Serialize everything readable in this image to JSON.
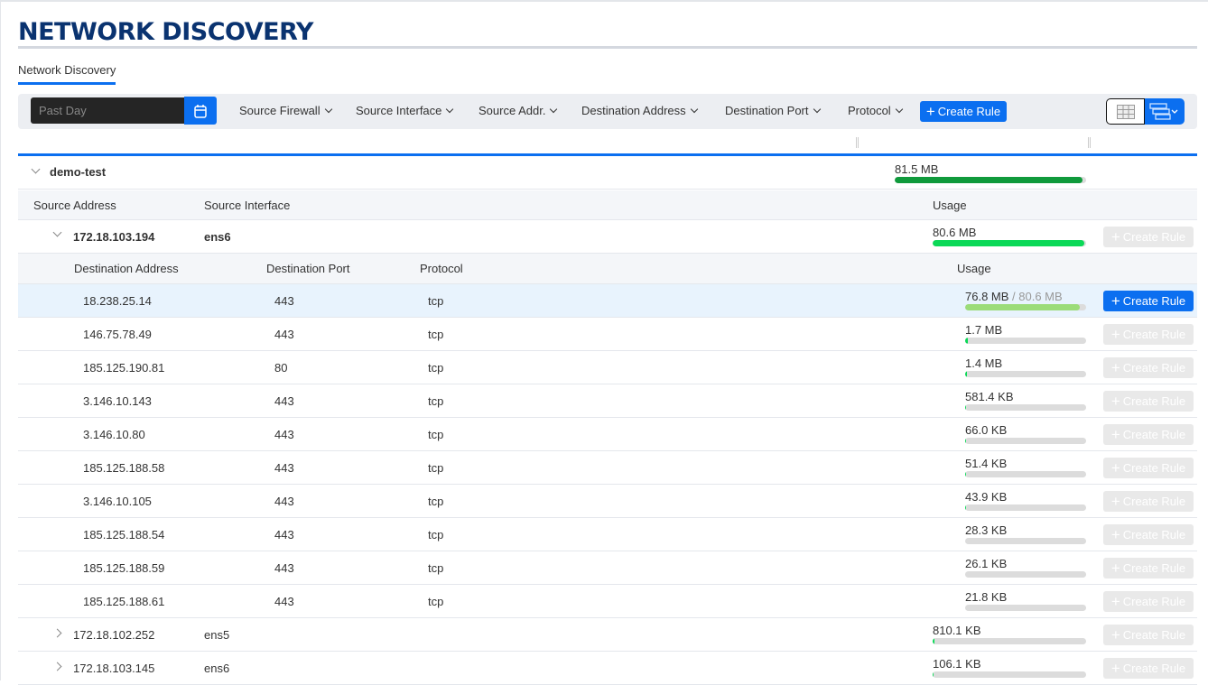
{
  "page": {
    "title": "NETWORK DISCOVERY",
    "tab": "Network Discovery"
  },
  "toolbar": {
    "date_value": "Past Day",
    "filters": [
      "Source Firewall",
      "Source Interface",
      "Source Addr.",
      "Destination Address",
      "Destination Port",
      "Protocol"
    ],
    "create_rule": "Create Rule"
  },
  "colors": {
    "accent": "#0b6ff0",
    "title": "#0a3370",
    "bar_group": "#109a3c",
    "bar_source": "#0bd957",
    "bar_dest": "#9bdc79"
  },
  "group": {
    "name": "demo-test",
    "usage": "81.5 MB",
    "fraction": 0.98
  },
  "source_headers": {
    "address": "Source Address",
    "interface": "Source Interface",
    "usage": "Usage"
  },
  "dest_headers": {
    "address": "Destination Address",
    "port": "Destination Port",
    "protocol": "Protocol",
    "usage": "Usage"
  },
  "create_rule_label": "Create Rule",
  "sources": [
    {
      "address": "172.18.103.194",
      "interface": "ens6",
      "usage": "80.6 MB",
      "fraction": 0.99,
      "expanded": true,
      "destinations": [
        {
          "address": "18.238.25.14",
          "port": "443",
          "protocol": "tcp",
          "usage": "76.8 MB",
          "total": "/ 80.6 MB",
          "fraction": 0.95,
          "selected": true
        },
        {
          "address": "146.75.78.49",
          "port": "443",
          "protocol": "tcp",
          "usage": "1.7 MB",
          "fraction": 0.021
        },
        {
          "address": "185.125.190.81",
          "port": "80",
          "protocol": "tcp",
          "usage": "1.4 MB",
          "fraction": 0.017
        },
        {
          "address": "3.146.10.143",
          "port": "443",
          "protocol": "tcp",
          "usage": "581.4 KB",
          "fraction": 0.007
        },
        {
          "address": "3.146.10.80",
          "port": "443",
          "protocol": "tcp",
          "usage": "66.0 KB",
          "fraction": 0.001
        },
        {
          "address": "185.125.188.58",
          "port": "443",
          "protocol": "tcp",
          "usage": "51.4 KB",
          "fraction": 0.001
        },
        {
          "address": "3.146.10.105",
          "port": "443",
          "protocol": "tcp",
          "usage": "43.9 KB",
          "fraction": 0.001
        },
        {
          "address": "185.125.188.54",
          "port": "443",
          "protocol": "tcp",
          "usage": "28.3 KB",
          "fraction": 0.0
        },
        {
          "address": "185.125.188.59",
          "port": "443",
          "protocol": "tcp",
          "usage": "26.1 KB",
          "fraction": 0.0
        },
        {
          "address": "185.125.188.61",
          "port": "443",
          "protocol": "tcp",
          "usage": "21.8 KB",
          "fraction": 0.0
        }
      ]
    },
    {
      "address": "172.18.102.252",
      "interface": "ens5",
      "usage": "810.1 KB",
      "fraction": 0.01,
      "expanded": false
    },
    {
      "address": "172.18.103.145",
      "interface": "ens6",
      "usage": "106.1 KB",
      "fraction": 0.001,
      "expanded": false
    }
  ]
}
